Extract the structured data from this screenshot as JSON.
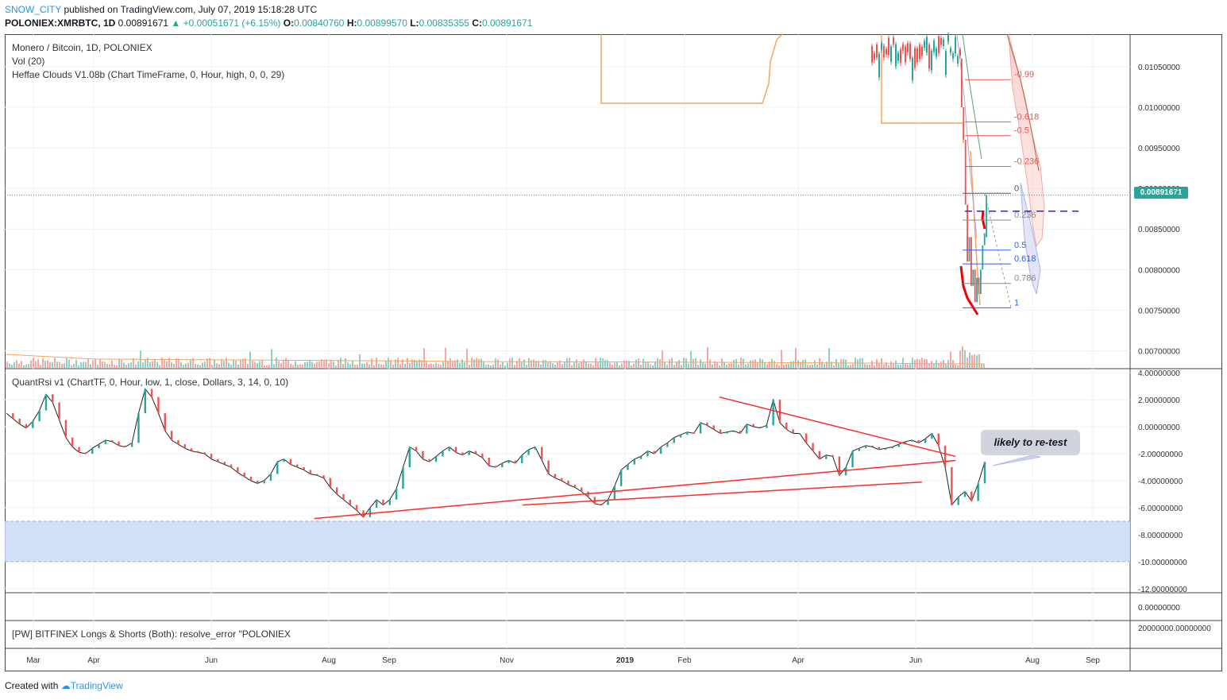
{
  "header": {
    "author": "SNOW_CITY",
    "published": " published on TradingView.com, July 07, 2019 15:18:28 UTC",
    "symbol": "POLONIEX:XMRBTC, 1D",
    "price": " 0.00891671 ",
    "change": "▲ +0.00051671 (+6.15%)",
    "o_label": " O:",
    "o_value": "0.00840760",
    "h_label": " H:",
    "h_value": "0.00899570",
    "l_label": " L:",
    "l_value": "0.00835355",
    "c_label": " C:",
    "c_value": "0.00891671"
  },
  "main_pane": {
    "title": "Monero / Bitcoin, 1D, POLONIEX",
    "vol_legend": "Vol (20)",
    "clouds_legend": "Heffae Clouds V1.08b (Chart TimeFrame, 0, Hour, high, 0, 0, 29)",
    "current_price_tag": "0.00891671"
  },
  "rsi_pane": {
    "legend": "QuantRsi v1 (ChartTF, 0, Hour, low, 1, close, Dollars, 3, 14, 0, 10)",
    "annotation": "likely to re-test"
  },
  "longs_pane": {
    "legend": "[PW] BITFINEX Longs & Shorts (Both): resolve_error \"POLONIEX"
  },
  "footer": {
    "created": "Created with",
    "brand": "TradingView"
  },
  "colors": {
    "up": "#26a69a",
    "down": "#ef5350",
    "trend": "#ff2a2a",
    "oversold_zone": "#c9d9f7",
    "orange_line": "#f7a35c",
    "author": "#2196f3"
  },
  "chart_data": [
    {
      "type": "candlestick",
      "title": "Monero / Bitcoin, 1D, POLONIEX",
      "x_ticks": [
        "Mar",
        "Apr",
        "Jun",
        "Aug",
        "Sep",
        "Nov",
        "2019",
        "Feb",
        "Apr",
        "Jun",
        "Aug",
        "Sep"
      ],
      "y_ticks": [
        "0.01050000",
        "0.01000000",
        "0.00950000",
        "0.00900000",
        "0.00850000",
        "0.00800000",
        "0.00750000",
        "0.00700000"
      ],
      "ylim": [
        0.00678,
        0.0109
      ],
      "last_close": 0.00891671,
      "recent_candles": [
        {
          "o": 0.0106,
          "c": 0.01
        },
        {
          "o": 0.01,
          "c": 0.0096
        },
        {
          "o": 0.0096,
          "c": 0.0088
        },
        {
          "o": 0.0088,
          "c": 0.0081
        },
        {
          "o": 0.0081,
          "c": 0.0084
        },
        {
          "o": 0.0084,
          "c": 0.0078
        },
        {
          "o": 0.0078,
          "c": 0.008
        },
        {
          "o": 0.008,
          "c": 0.0076
        },
        {
          "o": 0.0076,
          "c": 0.0079
        },
        {
          "o": 0.0079,
          "c": 0.0077
        },
        {
          "o": 0.0077,
          "c": 0.008
        },
        {
          "o": 0.008,
          "c": 0.0083
        },
        {
          "o": 0.0083,
          "c": 0.00845
        },
        {
          "o": 0.0084,
          "c": 0.00892
        }
      ],
      "fibonacci": [
        {
          "level": "-0.99",
          "price": 0.01034,
          "color": "#ef5350"
        },
        {
          "level": "-0.618",
          "price": 0.00982,
          "color": "#ef5350"
        },
        {
          "level": "-0.5",
          "price": 0.00965,
          "color": "#ef5350"
        },
        {
          "level": "-0.236",
          "price": 0.00927,
          "color": "#ef5350"
        },
        {
          "level": "0",
          "price": 0.00894,
          "color": "#555555"
        },
        {
          "level": "0.236",
          "price": 0.00861,
          "color": "#888888"
        },
        {
          "level": "0.5",
          "price": 0.00824,
          "color": "#2962ff"
        },
        {
          "level": "0.618",
          "price": 0.00807,
          "color": "#2962ff"
        },
        {
          "level": "0.786",
          "price": 0.00783,
          "color": "#888888"
        },
        {
          "level": "1",
          "price": 0.00753,
          "color": "#2962ff"
        }
      ],
      "dashed_level": 0.00872
    },
    {
      "type": "line",
      "title": "QuantRsi v1",
      "y_ticks": [
        "4.00000000",
        "2.00000000",
        "0.00000000",
        "-2.00000000",
        "-4.00000000",
        "-6.00000000",
        "-8.00000000",
        "-10.00000000",
        "-12.00000000"
      ],
      "ylim": [
        -12.3,
        4.3
      ],
      "oversold_zone": [
        -10,
        -7
      ],
      "series": [
        {
          "values": [
            1.0,
            0.6,
            0.2,
            -0.1,
            0.4,
            1.2,
            2.4,
            1.8,
            0.5,
            -0.8,
            -1.5,
            -1.9,
            -2.0,
            -1.6,
            -1.3,
            -1.0,
            -1.1,
            -1.4,
            -1.5,
            -1.2,
            1.0,
            2.8,
            2.2,
            1.0,
            -0.3,
            -1.0,
            -1.3,
            -1.6,
            -1.8,
            -1.9,
            -2.0,
            -2.4,
            -2.6,
            -2.8,
            -3.0,
            -3.4,
            -3.7,
            -4.0,
            -4.2,
            -4.0,
            -3.5,
            -2.6,
            -2.4,
            -2.8,
            -3.0,
            -3.2,
            -3.5,
            -3.6,
            -3.8,
            -4.5,
            -5.0,
            -5.4,
            -5.8,
            -6.2,
            -6.7,
            -6.0,
            -5.4,
            -5.8,
            -5.4,
            -4.6,
            -3.0,
            -1.5,
            -1.8,
            -2.4,
            -2.6,
            -2.2,
            -1.8,
            -1.5,
            -1.9,
            -2.1,
            -1.8,
            -2.0,
            -2.3,
            -2.9,
            -3.0,
            -2.7,
            -2.5,
            -2.7,
            -2.1,
            -1.7,
            -1.5,
            -2.5,
            -3.5,
            -3.8,
            -4.0,
            -4.3,
            -4.5,
            -4.8,
            -5.2,
            -5.7,
            -5.8,
            -5.4,
            -4.4,
            -3.2,
            -2.8,
            -2.4,
            -2.2,
            -1.8,
            -2.0,
            -1.5,
            -1.2,
            -0.8,
            -0.6,
            -0.4,
            -0.5,
            0.3,
            0.1,
            -0.2,
            -0.5,
            -0.4,
            -0.3,
            -0.5,
            0.2,
            0.0,
            -0.1,
            0.1,
            2.0,
            0.3,
            -0.2,
            -0.5,
            -0.5,
            -1.2,
            -1.8,
            -2.4,
            -2.1,
            -2.2,
            -3.6,
            -3.0,
            -1.8,
            -1.6,
            -1.4,
            -1.5,
            -1.7,
            -1.6,
            -1.5,
            -1.3,
            -1.1,
            -1.0,
            -1.2,
            -0.9,
            -0.5,
            -1.4,
            -3.0,
            -5.8,
            -5.2,
            -4.8,
            -5.5,
            -4.2,
            -2.6
          ],
          "trendlines": [
            {
              "from": [
                0.635,
                2.2
              ],
              "to": [
                0.845,
                -2.2
              ],
              "color": "#ff2a2a"
            },
            {
              "from": [
                0.275,
                -6.8
              ],
              "to": [
                0.845,
                -2.5
              ],
              "color": "#ff2a2a"
            },
            {
              "from": [
                0.46,
                -5.8
              ],
              "to": [
                0.815,
                -4.1
              ],
              "color": "#ff2a2a"
            }
          ]
        }
      ]
    },
    {
      "type": "line",
      "title": "[PW] BITFINEX Longs & Shorts (Both)",
      "y_ticks": [
        "0.00000000",
        "20000000.00000000"
      ]
    }
  ]
}
